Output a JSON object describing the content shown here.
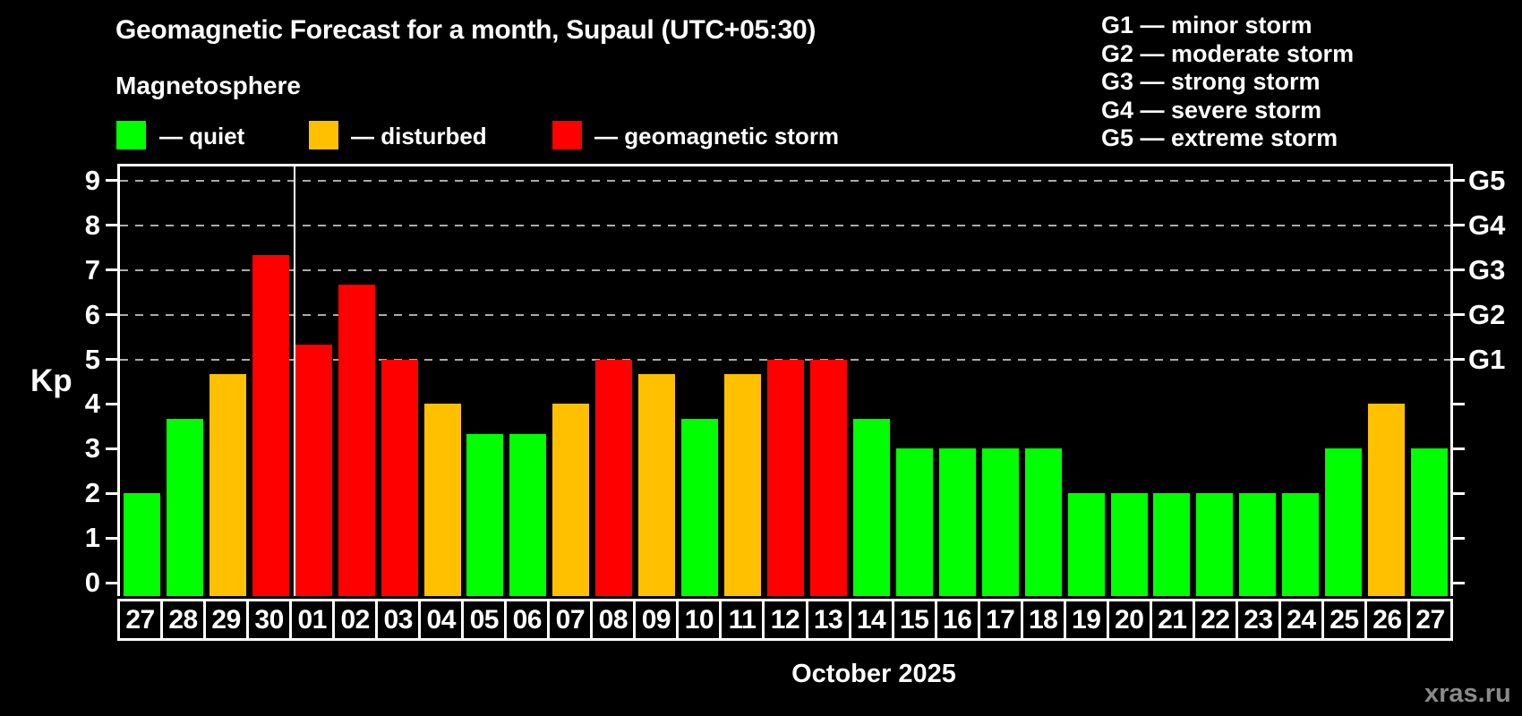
{
  "title": "Geomagnetic Forecast for a month, Supaul (UTC+05:30)",
  "subtitle": "Magnetosphere",
  "legend": {
    "quiet": "— quiet",
    "disturbed": "— disturbed",
    "storm": "— geomagnetic storm"
  },
  "storm_scale": [
    "G1 — minor storm",
    "G2 — moderate storm",
    "G3 — strong storm",
    "G4 — severe storm",
    "G5 — extreme storm"
  ],
  "watermark": "xras.ru",
  "colors": {
    "quiet": "#00ff00",
    "disturbed": "#ffc000",
    "storm": "#ff0000",
    "grid": "#ababab",
    "frame": "#ffffff",
    "watermark": "#8a8a8a",
    "background": "#000000"
  },
  "chart_data": {
    "type": "bar",
    "title": "Geomagnetic Forecast for a month, Supaul (UTC+05:30)",
    "ylabel": "Kp",
    "xlabel": "October 2025",
    "ylim": [
      0,
      9.4
    ],
    "y_ticks": [
      0,
      1,
      2,
      3,
      4,
      5,
      6,
      7,
      8,
      9
    ],
    "grid_levels_kp": [
      5,
      6,
      7,
      8,
      9
    ],
    "grid_style": "dashed horizontal lines at storm levels G1–G5",
    "legend_position": "top",
    "right_axis_labels": [
      {
        "kp": 5,
        "label": "G1"
      },
      {
        "kp": 6,
        "label": "G2"
      },
      {
        "kp": 7,
        "label": "G3"
      },
      {
        "kp": 8,
        "label": "G4"
      },
      {
        "kp": 9,
        "label": "G5"
      }
    ],
    "categories": [
      "27",
      "28",
      "29",
      "30",
      "01",
      "02",
      "03",
      "04",
      "05",
      "06",
      "07",
      "08",
      "09",
      "10",
      "11",
      "12",
      "13",
      "14",
      "15",
      "16",
      "17",
      "18",
      "19",
      "20",
      "21",
      "22",
      "23",
      "24",
      "25",
      "26",
      "27"
    ],
    "values": [
      2,
      3.67,
      4.67,
      7.33,
      5.33,
      6.67,
      5,
      4,
      3.33,
      3.33,
      4,
      5,
      4.67,
      3.67,
      4.67,
      5,
      5,
      3.67,
      3,
      3,
      3,
      3,
      2,
      2,
      2,
      2,
      2,
      2,
      3,
      4,
      3
    ],
    "statuses": [
      "quiet",
      "quiet",
      "disturbed",
      "storm",
      "storm",
      "storm",
      "storm",
      "disturbed",
      "quiet",
      "quiet",
      "disturbed",
      "storm",
      "disturbed",
      "quiet",
      "disturbed",
      "storm",
      "storm",
      "quiet",
      "quiet",
      "quiet",
      "quiet",
      "quiet",
      "quiet",
      "quiet",
      "quiet",
      "quiet",
      "quiet",
      "quiet",
      "quiet",
      "disturbed",
      "quiet"
    ],
    "month_boundary_after_index": 3
  }
}
